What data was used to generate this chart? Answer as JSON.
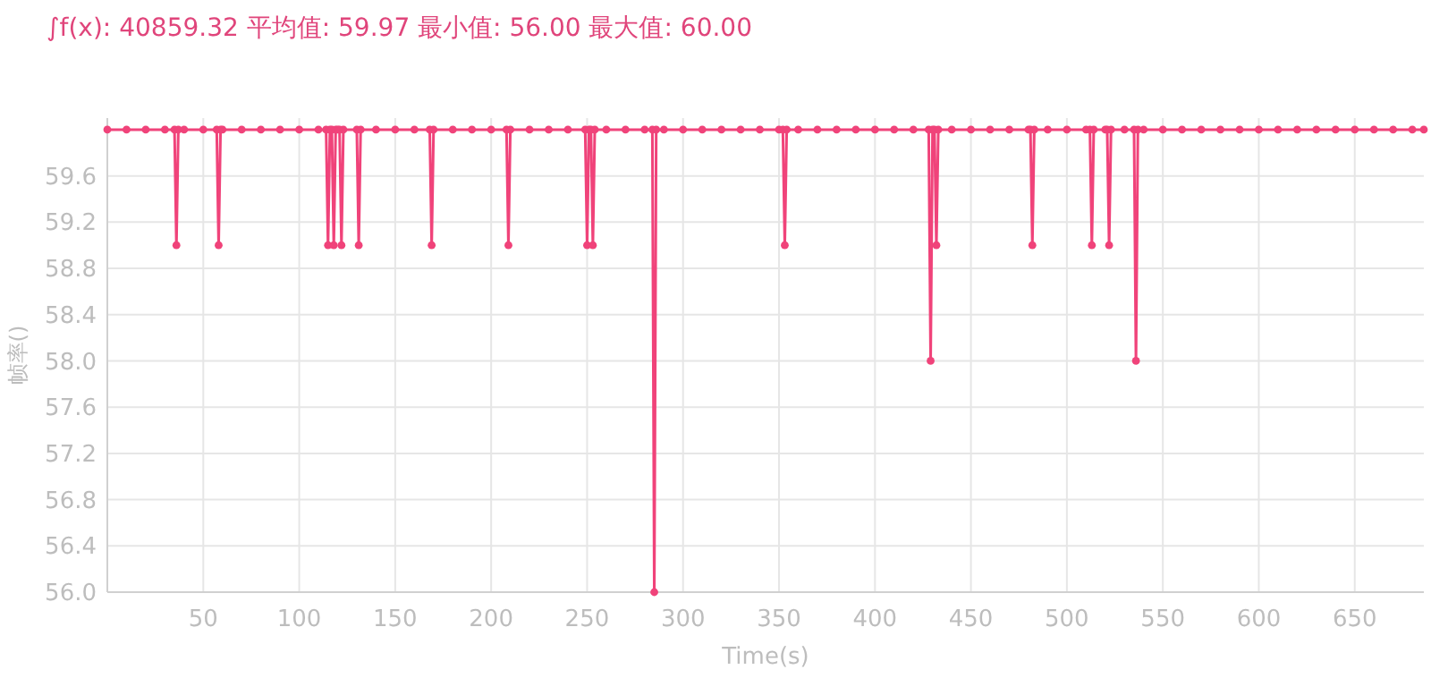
{
  "chart_data": {
    "type": "line",
    "title": "∫f(x): 40859.32 平均值: 59.97 最小值: 56.00 最大值: 60.00",
    "xlabel": "Time(s)",
    "ylabel": "帧率()",
    "x": [
      0,
      10,
      20,
      30,
      35,
      36,
      37,
      40,
      50,
      57,
      58,
      59,
      60,
      70,
      80,
      90,
      100,
      110,
      114,
      115,
      116,
      117,
      118,
      119,
      120,
      121,
      122,
      123,
      130,
      131,
      132,
      140,
      150,
      160,
      168,
      169,
      170,
      180,
      190,
      200,
      208,
      209,
      210,
      220,
      230,
      240,
      249,
      250,
      251,
      252,
      253,
      254,
      260,
      270,
      280,
      284,
      285,
      286,
      290,
      300,
      310,
      320,
      330,
      340,
      350,
      352,
      353,
      354,
      360,
      370,
      380,
      390,
      400,
      410,
      420,
      428,
      429,
      430,
      431,
      432,
      433,
      440,
      450,
      460,
      470,
      480,
      481,
      482,
      483,
      490,
      500,
      510,
      512,
      513,
      514,
      520,
      521,
      522,
      523,
      530,
      535,
      536,
      537,
      540,
      550,
      560,
      570,
      580,
      590,
      600,
      610,
      620,
      630,
      640,
      650,
      660,
      670,
      680,
      686
    ],
    "series": [
      {
        "color": "#f0437a",
        "values": [
          60,
          60,
          60,
          60,
          60,
          59,
          60,
          60,
          60,
          60,
          59,
          60,
          60,
          60,
          60,
          60,
          60,
          60,
          60,
          59,
          60,
          60,
          59,
          60,
          60,
          60,
          59,
          60,
          60,
          59,
          60,
          60,
          60,
          60,
          60,
          59,
          60,
          60,
          60,
          60,
          60,
          59,
          60,
          60,
          60,
          60,
          60,
          59,
          60,
          60,
          59,
          60,
          60,
          60,
          60,
          60,
          56,
          60,
          60,
          60,
          60,
          60,
          60,
          60,
          60,
          60,
          59,
          60,
          60,
          60,
          60,
          60,
          60,
          60,
          60,
          60,
          58,
          60,
          60,
          59,
          60,
          60,
          60,
          60,
          60,
          60,
          60,
          59,
          60,
          60,
          60,
          60,
          60,
          59,
          60,
          60,
          60,
          59,
          60,
          60,
          60,
          58,
          60,
          60,
          60,
          60,
          60,
          60,
          60,
          60,
          60,
          60,
          60,
          60,
          60,
          60,
          60,
          60,
          60
        ]
      }
    ],
    "xlim": [
      0,
      686
    ],
    "ylim": [
      56,
      60.1
    ],
    "xticks": [
      50,
      100,
      150,
      200,
      250,
      300,
      350,
      400,
      450,
      500,
      550,
      600,
      650
    ],
    "yticks": [
      {
        "value": 56,
        "label": "56.0"
      },
      56.4,
      56.8,
      57.2,
      57.6,
      {
        "value": 58,
        "label": "58.0"
      },
      58.4,
      58.8,
      59.2,
      59.6
    ],
    "grid": true,
    "marker": "circle",
    "line_style": "solid"
  }
}
